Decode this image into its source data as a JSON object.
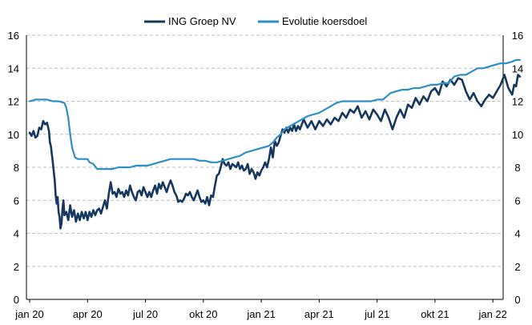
{
  "chart_data": {
    "type": "line",
    "title": "",
    "xlabel": "",
    "ylabel": "",
    "ylim": [
      0,
      16
    ],
    "yticks": [
      "0",
      "2",
      "4",
      "6",
      "8",
      "10",
      "12",
      "14",
      "16"
    ],
    "y2ticks": [
      "0",
      "2",
      "4",
      "6",
      "8",
      "10",
      "12",
      "14",
      "16"
    ],
    "xticks": [
      {
        "label": "jan 20",
        "t": 0
      },
      {
        "label": "apr 20",
        "t": 3
      },
      {
        "label": "jul 20",
        "t": 6
      },
      {
        "label": "okt 20",
        "t": 9
      },
      {
        "label": "jan 21",
        "t": 12
      },
      {
        "label": "apr 21",
        "t": 15
      },
      {
        "label": "jul 21",
        "t": 18
      },
      {
        "label": "okt 21",
        "t": 21
      },
      {
        "label": "jan 22",
        "t": 24
      }
    ],
    "grid": "horizontal dashed",
    "legend_position": "top",
    "series": [
      {
        "name": "ING Groep NV",
        "color": "#17375e",
        "points": [
          [
            0.0,
            10.1
          ],
          [
            0.1,
            9.9
          ],
          [
            0.2,
            10.2
          ],
          [
            0.3,
            9.8
          ],
          [
            0.4,
            9.9
          ],
          [
            0.5,
            10.4
          ],
          [
            0.6,
            10.3
          ],
          [
            0.7,
            10.8
          ],
          [
            0.8,
            10.6
          ],
          [
            0.9,
            10.7
          ],
          [
            1.0,
            10.2
          ],
          [
            1.05,
            9.5
          ],
          [
            1.1,
            9.3
          ],
          [
            1.15,
            8.8
          ],
          [
            1.2,
            8.3
          ],
          [
            1.3,
            7.2
          ],
          [
            1.35,
            6.3
          ],
          [
            1.4,
            5.8
          ],
          [
            1.45,
            6.2
          ],
          [
            1.5,
            5.3
          ],
          [
            1.55,
            5.0
          ],
          [
            1.6,
            4.3
          ],
          [
            1.65,
            4.6
          ],
          [
            1.7,
            5.5
          ],
          [
            1.75,
            6.0
          ],
          [
            1.8,
            5.1
          ],
          [
            1.9,
            5.3
          ],
          [
            2.0,
            4.8
          ],
          [
            2.1,
            5.7
          ],
          [
            2.2,
            5.0
          ],
          [
            2.3,
            5.4
          ],
          [
            2.4,
            4.7
          ],
          [
            2.5,
            5.2
          ],
          [
            2.6,
            4.8
          ],
          [
            2.7,
            5.3
          ],
          [
            2.8,
            4.9
          ],
          [
            2.9,
            5.3
          ],
          [
            3.0,
            4.8
          ],
          [
            3.1,
            5.3
          ],
          [
            3.2,
            5.0
          ],
          [
            3.3,
            5.4
          ],
          [
            3.4,
            5.1
          ],
          [
            3.5,
            5.4
          ],
          [
            3.6,
            5.5
          ],
          [
            3.7,
            5.2
          ],
          [
            3.8,
            5.6
          ],
          [
            3.9,
            6.0
          ],
          [
            4.0,
            5.5
          ],
          [
            4.1,
            6.4
          ],
          [
            4.2,
            7.1
          ],
          [
            4.3,
            6.4
          ],
          [
            4.4,
            6.5
          ],
          [
            4.5,
            6.2
          ],
          [
            4.6,
            6.7
          ],
          [
            4.7,
            6.4
          ],
          [
            4.8,
            6.5
          ],
          [
            4.9,
            6.2
          ],
          [
            5.0,
            6.6
          ],
          [
            5.1,
            6.3
          ],
          [
            5.2,
            6.9
          ],
          [
            5.3,
            6.5
          ],
          [
            5.4,
            6.2
          ],
          [
            5.5,
            6.0
          ],
          [
            5.6,
            6.5
          ],
          [
            5.7,
            6.6
          ],
          [
            5.8,
            6.3
          ],
          [
            5.9,
            6.8
          ],
          [
            6.0,
            6.5
          ],
          [
            6.1,
            6.2
          ],
          [
            6.2,
            6.5
          ],
          [
            6.3,
            6.2
          ],
          [
            6.4,
            6.6
          ],
          [
            6.5,
            6.9
          ],
          [
            6.6,
            6.4
          ],
          [
            6.7,
            7.0
          ],
          [
            6.8,
            6.7
          ],
          [
            6.9,
            7.1
          ],
          [
            7.0,
            6.8
          ],
          [
            7.1,
            6.5
          ],
          [
            7.2,
            6.9
          ],
          [
            7.3,
            7.2
          ],
          [
            7.4,
            6.9
          ],
          [
            7.5,
            6.5
          ],
          [
            7.6,
            6.3
          ],
          [
            7.7,
            5.9
          ],
          [
            7.8,
            6.0
          ],
          [
            7.9,
            5.9
          ],
          [
            8.0,
            6.1
          ],
          [
            8.1,
            6.4
          ],
          [
            8.2,
            6.3
          ],
          [
            8.3,
            6.5
          ],
          [
            8.4,
            6.2
          ],
          [
            8.5,
            6.0
          ],
          [
            8.6,
            6.3
          ],
          [
            8.7,
            6.6
          ],
          [
            8.8,
            6.2
          ],
          [
            8.9,
            5.9
          ],
          [
            9.0,
            6.0
          ],
          [
            9.1,
            5.8
          ],
          [
            9.2,
            6.2
          ],
          [
            9.3,
            5.7
          ],
          [
            9.4,
            6.3
          ],
          [
            9.5,
            6.2
          ],
          [
            9.6,
            6.9
          ],
          [
            9.7,
            7.5
          ],
          [
            9.8,
            7.6
          ],
          [
            9.9,
            8.0
          ],
          [
            10.0,
            8.5
          ],
          [
            10.1,
            8.2
          ],
          [
            10.2,
            8.1
          ],
          [
            10.3,
            8.3
          ],
          [
            10.4,
            7.9
          ],
          [
            10.5,
            8.2
          ],
          [
            10.6,
            8.1
          ],
          [
            10.7,
            8.0
          ],
          [
            10.8,
            8.3
          ],
          [
            10.9,
            7.9
          ],
          [
            11.0,
            8.1
          ],
          [
            11.1,
            7.8
          ],
          [
            11.2,
            7.9
          ],
          [
            11.3,
            8.2
          ],
          [
            11.4,
            7.6
          ],
          [
            11.5,
            7.9
          ],
          [
            11.6,
            7.7
          ],
          [
            11.7,
            7.3
          ],
          [
            11.8,
            7.7
          ],
          [
            11.9,
            7.5
          ],
          [
            12.0,
            7.8
          ],
          [
            12.1,
            8.0
          ],
          [
            12.2,
            8.3
          ],
          [
            12.3,
            8.0
          ],
          [
            12.4,
            8.5
          ],
          [
            12.5,
            9.2
          ],
          [
            12.6,
            8.6
          ],
          [
            12.7,
            9.6
          ],
          [
            12.8,
            9.3
          ],
          [
            12.9,
            9.5
          ],
          [
            13.0,
            9.9
          ],
          [
            13.1,
            10.3
          ],
          [
            13.2,
            10.1
          ],
          [
            13.3,
            10.4
          ],
          [
            13.4,
            10.1
          ],
          [
            13.5,
            10.4
          ],
          [
            13.6,
            10.2
          ],
          [
            13.7,
            10.6
          ],
          [
            13.8,
            10.2
          ],
          [
            13.9,
            10.5
          ],
          [
            14.0,
            10.3
          ],
          [
            14.2,
            10.9
          ],
          [
            14.4,
            10.4
          ],
          [
            14.6,
            10.8
          ],
          [
            14.8,
            10.3
          ],
          [
            15.0,
            10.8
          ],
          [
            15.2,
            10.5
          ],
          [
            15.4,
            10.9
          ],
          [
            15.6,
            10.6
          ],
          [
            15.8,
            11.0
          ],
          [
            16.0,
            10.8
          ],
          [
            16.2,
            11.3
          ],
          [
            16.4,
            11.0
          ],
          [
            16.6,
            11.5
          ],
          [
            16.8,
            11.3
          ],
          [
            17.0,
            11.7
          ],
          [
            17.2,
            11.0
          ],
          [
            17.4,
            11.4
          ],
          [
            17.6,
            10.9
          ],
          [
            17.8,
            11.5
          ],
          [
            18.0,
            11.2
          ],
          [
            18.2,
            10.8
          ],
          [
            18.4,
            11.5
          ],
          [
            18.6,
            11.0
          ],
          [
            18.8,
            10.3
          ],
          [
            19.0,
            11.0
          ],
          [
            19.2,
            11.5
          ],
          [
            19.4,
            11.0
          ],
          [
            19.6,
            11.8
          ],
          [
            19.8,
            11.6
          ],
          [
            20.0,
            12.2
          ],
          [
            20.2,
            11.8
          ],
          [
            20.4,
            12.3
          ],
          [
            20.6,
            12.0
          ],
          [
            20.8,
            12.6
          ],
          [
            21.0,
            12.8
          ],
          [
            21.2,
            12.4
          ],
          [
            21.4,
            13.2
          ],
          [
            21.6,
            12.9
          ],
          [
            21.8,
            13.3
          ],
          [
            22.0,
            13.0
          ],
          [
            22.2,
            13.4
          ],
          [
            22.4,
            13.3
          ],
          [
            22.6,
            12.6
          ],
          [
            22.8,
            12.1
          ],
          [
            23.0,
            12.5
          ],
          [
            23.2,
            12.0
          ],
          [
            23.4,
            11.7
          ],
          [
            23.6,
            12.1
          ],
          [
            23.8,
            12.4
          ],
          [
            24.0,
            12.2
          ],
          [
            24.2,
            12.6
          ],
          [
            24.4,
            13.0
          ],
          [
            24.6,
            13.6
          ],
          [
            24.8,
            12.8
          ],
          [
            25.0,
            12.4
          ],
          [
            25.1,
            13.0
          ],
          [
            25.2,
            12.9
          ],
          [
            25.3,
            13.6
          ],
          [
            25.4,
            13.5
          ]
        ]
      },
      {
        "name": "Evolutie koersdoel",
        "color": "#2e8ec6",
        "points": [
          [
            0.0,
            12.0
          ],
          [
            0.3,
            12.1
          ],
          [
            0.6,
            12.1
          ],
          [
            0.9,
            12.1
          ],
          [
            1.2,
            12.0
          ],
          [
            1.5,
            12.0
          ],
          [
            1.8,
            11.9
          ],
          [
            1.9,
            11.6
          ],
          [
            2.0,
            11.0
          ],
          [
            2.1,
            10.0
          ],
          [
            2.2,
            9.2
          ],
          [
            2.35,
            8.6
          ],
          [
            2.5,
            8.5
          ],
          [
            2.8,
            8.5
          ],
          [
            3.0,
            8.5
          ],
          [
            3.1,
            8.3
          ],
          [
            3.3,
            8.2
          ],
          [
            3.5,
            7.9
          ],
          [
            3.8,
            7.9
          ],
          [
            4.0,
            7.9
          ],
          [
            4.3,
            7.9
          ],
          [
            4.6,
            8.0
          ],
          [
            4.9,
            8.0
          ],
          [
            5.2,
            8.0
          ],
          [
            5.5,
            8.1
          ],
          [
            5.8,
            8.1
          ],
          [
            6.1,
            8.1
          ],
          [
            6.4,
            8.2
          ],
          [
            6.7,
            8.3
          ],
          [
            7.0,
            8.4
          ],
          [
            7.3,
            8.5
          ],
          [
            7.6,
            8.5
          ],
          [
            7.9,
            8.5
          ],
          [
            8.2,
            8.5
          ],
          [
            8.5,
            8.5
          ],
          [
            8.8,
            8.4
          ],
          [
            9.1,
            8.4
          ],
          [
            9.4,
            8.3
          ],
          [
            9.7,
            8.3
          ],
          [
            10.0,
            8.4
          ],
          [
            10.3,
            8.5
          ],
          [
            10.6,
            8.6
          ],
          [
            10.9,
            8.7
          ],
          [
            11.2,
            8.9
          ],
          [
            11.5,
            9.0
          ],
          [
            11.8,
            9.1
          ],
          [
            12.1,
            9.2
          ],
          [
            12.4,
            9.3
          ],
          [
            12.6,
            9.5
          ],
          [
            12.8,
            9.8
          ],
          [
            13.0,
            10.0
          ],
          [
            13.2,
            10.3
          ],
          [
            13.5,
            10.5
          ],
          [
            13.8,
            10.7
          ],
          [
            14.1,
            10.9
          ],
          [
            14.4,
            11.1
          ],
          [
            14.7,
            11.2
          ],
          [
            15.0,
            11.3
          ],
          [
            15.3,
            11.5
          ],
          [
            15.6,
            11.7
          ],
          [
            15.9,
            11.9
          ],
          [
            16.2,
            12.0
          ],
          [
            16.5,
            12.0
          ],
          [
            16.8,
            12.0
          ],
          [
            17.1,
            12.0
          ],
          [
            17.4,
            12.0
          ],
          [
            17.7,
            12.0
          ],
          [
            18.0,
            12.1
          ],
          [
            18.3,
            12.1
          ],
          [
            18.5,
            12.3
          ],
          [
            18.7,
            12.5
          ],
          [
            19.0,
            12.6
          ],
          [
            19.3,
            12.7
          ],
          [
            19.6,
            12.7
          ],
          [
            19.9,
            12.8
          ],
          [
            20.2,
            12.8
          ],
          [
            20.5,
            12.9
          ],
          [
            20.8,
            13.0
          ],
          [
            21.1,
            13.0
          ],
          [
            21.4,
            13.1
          ],
          [
            21.7,
            13.1
          ],
          [
            22.0,
            13.5
          ],
          [
            22.3,
            13.6
          ],
          [
            22.6,
            13.6
          ],
          [
            22.9,
            13.8
          ],
          [
            23.2,
            14.0
          ],
          [
            23.5,
            14.0
          ],
          [
            23.8,
            14.1
          ],
          [
            24.1,
            14.2
          ],
          [
            24.4,
            14.3
          ],
          [
            24.7,
            14.3
          ],
          [
            25.0,
            14.4
          ],
          [
            25.2,
            14.5
          ],
          [
            25.4,
            14.5
          ]
        ]
      }
    ]
  }
}
